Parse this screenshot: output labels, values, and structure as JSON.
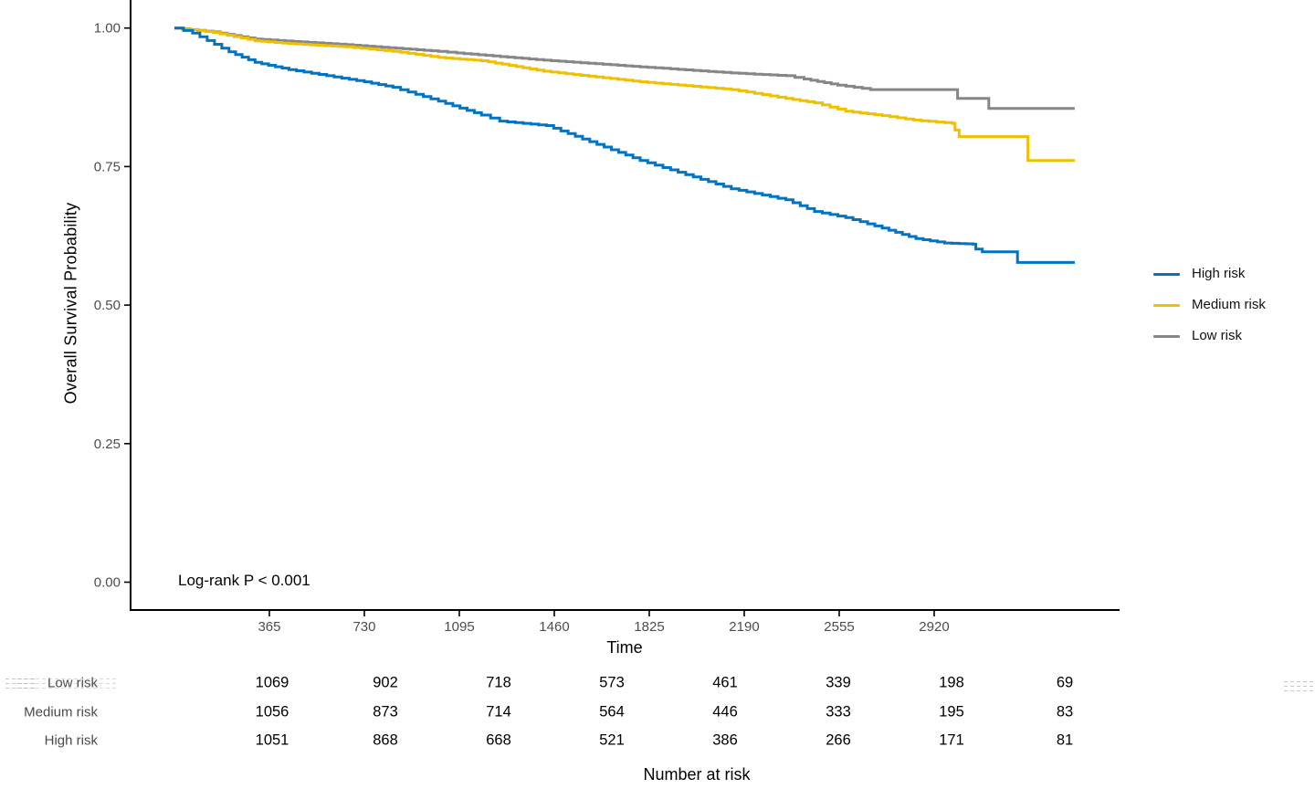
{
  "chart_data": {
    "type": "line",
    "subtype": "kaplan-meier-step",
    "title": "",
    "ylabel": "Overall Survival Probability",
    "xlabel": "Time",
    "annotation": "Log-rank P < 0.001",
    "grid": false,
    "legend_position": "right",
    "xlim": [
      0,
      3650
    ],
    "ylim": [
      0.0,
      1.0
    ],
    "x_ticks": [
      365,
      730,
      1095,
      1460,
      1825,
      2190,
      2555,
      2920
    ],
    "y_ticks": [
      {
        "v": 1.0,
        "label": "1.00"
      },
      {
        "v": 0.75,
        "label": "0.75"
      },
      {
        "v": 0.5,
        "label": "0.50"
      },
      {
        "v": 0.25,
        "label": "0.25"
      },
      {
        "v": 0.0,
        "label": "0.00"
      }
    ],
    "axis_color": "#000000",
    "tick_text_color": "#4d4d4d",
    "series": [
      {
        "name": "High risk",
        "color": "#0073C2",
        "points": [
          [
            0,
            1.0
          ],
          [
            70,
            0.991
          ],
          [
            210,
            0.957
          ],
          [
            310,
            0.938
          ],
          [
            440,
            0.925
          ],
          [
            730,
            0.903
          ],
          [
            840,
            0.893
          ],
          [
            1015,
            0.868
          ],
          [
            1180,
            0.843
          ],
          [
            1250,
            0.832
          ],
          [
            1430,
            0.824
          ],
          [
            1790,
            0.761
          ],
          [
            2140,
            0.71
          ],
          [
            2350,
            0.69
          ],
          [
            2460,
            0.669
          ],
          [
            2580,
            0.658
          ],
          [
            2720,
            0.639
          ],
          [
            2850,
            0.62
          ],
          [
            2960,
            0.612
          ],
          [
            3070,
            0.61
          ],
          [
            3080,
            0.601
          ],
          [
            3105,
            0.596
          ],
          [
            3230,
            0.596
          ],
          [
            3240,
            0.577
          ],
          [
            3460,
            0.577
          ]
        ]
      },
      {
        "name": "Medium risk",
        "color": "#EFC000",
        "points": [
          [
            0,
            1.0
          ],
          [
            150,
            0.992
          ],
          [
            310,
            0.977
          ],
          [
            440,
            0.972
          ],
          [
            660,
            0.966
          ],
          [
            840,
            0.958
          ],
          [
            1015,
            0.947
          ],
          [
            1180,
            0.941
          ],
          [
            1420,
            0.922
          ],
          [
            1790,
            0.903
          ],
          [
            2140,
            0.889
          ],
          [
            2350,
            0.873
          ],
          [
            2460,
            0.865
          ],
          [
            2580,
            0.85
          ],
          [
            2720,
            0.842
          ],
          [
            2840,
            0.834
          ],
          [
            2990,
            0.828
          ],
          [
            3000,
            0.816
          ],
          [
            3016,
            0.804
          ],
          [
            3270,
            0.804
          ],
          [
            3280,
            0.761
          ],
          [
            3460,
            0.761
          ]
        ]
      },
      {
        "name": "Low risk",
        "color": "#868686",
        "points": [
          [
            0,
            1.0
          ],
          [
            150,
            0.993
          ],
          [
            310,
            0.98
          ],
          [
            660,
            0.97
          ],
          [
            1015,
            0.958
          ],
          [
            1085,
            0.955
          ],
          [
            1420,
            0.942
          ],
          [
            1790,
            0.93
          ],
          [
            2140,
            0.919
          ],
          [
            2350,
            0.914
          ],
          [
            2420,
            0.908
          ],
          [
            2550,
            0.897
          ],
          [
            2675,
            0.889
          ],
          [
            3000,
            0.889
          ],
          [
            3010,
            0.873
          ],
          [
            3120,
            0.873
          ],
          [
            3130,
            0.855
          ],
          [
            3460,
            0.855
          ]
        ]
      }
    ],
    "legend": [
      "High risk",
      "Medium risk",
      "Low risk"
    ]
  },
  "risk_table": {
    "title": "Number at risk",
    "times": [
      365,
      730,
      1095,
      1460,
      1825,
      2190,
      2555,
      2920
    ],
    "rows": [
      {
        "label": "Low risk",
        "values": [
          1069,
          902,
          718,
          573,
          461,
          339,
          198,
          69
        ]
      },
      {
        "label": "Medium risk",
        "values": [
          1056,
          873,
          714,
          564,
          446,
          333,
          195,
          83
        ]
      },
      {
        "label": "High risk",
        "values": [
          1051,
          868,
          668,
          521,
          386,
          266,
          171,
          81
        ]
      }
    ]
  }
}
